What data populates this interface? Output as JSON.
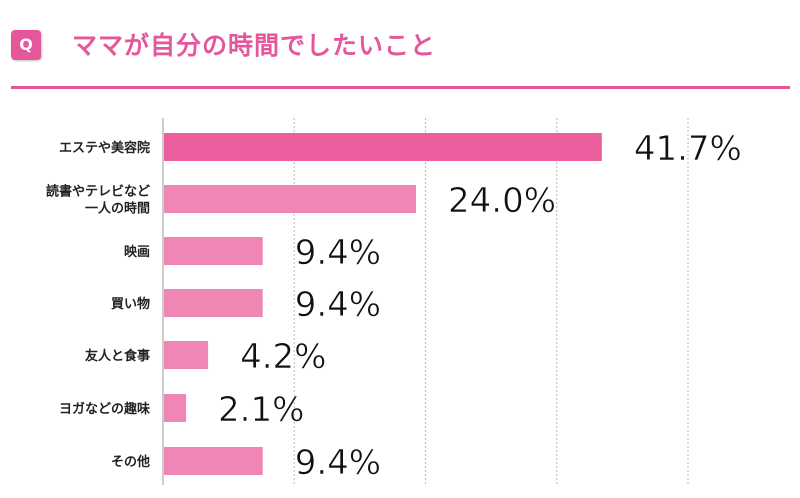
{
  "header": {
    "badge": "Q",
    "title": "ママが自分の時間でしたいこと"
  },
  "chart_data": {
    "type": "bar",
    "orientation": "horizontal",
    "categories": [
      [
        "エステや美容院"
      ],
      [
        "読書やテレビなど",
        "一人の時間"
      ],
      [
        "映画"
      ],
      [
        "買い物"
      ],
      [
        "友人と食事"
      ],
      [
        "ヨガなどの趣味"
      ],
      [
        "その他"
      ]
    ],
    "values": [
      41.7,
      24.0,
      9.4,
      9.4,
      4.2,
      2.1,
      9.4
    ],
    "value_labels": [
      "41.7%",
      "24.0%",
      "9.4%",
      "9.4%",
      "4.2%",
      "2.1%",
      "9.4%"
    ],
    "xlim": [
      0,
      60
    ],
    "grid": "dashed vertical",
    "colors": {
      "first_bar": "#ec5d9d",
      "other_bars": "#ef86b6",
      "accent": "#e5569a"
    }
  }
}
